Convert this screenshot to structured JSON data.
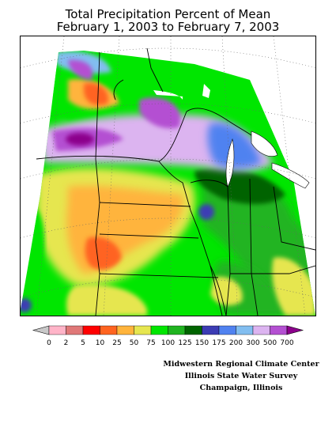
{
  "title": {
    "line1": "Total Precipitation Percent of Mean",
    "line2": "February 1, 2003 to February 7, 2003"
  },
  "legend": {
    "ticks": [
      "0",
      "2",
      "5",
      "10",
      "25",
      "50",
      "75",
      "100",
      "125",
      "150",
      "175",
      "200",
      "300",
      "500",
      "700"
    ],
    "colors": [
      "#c8c8c8",
      "#ffb4c8",
      "#e07878",
      "#ff0000",
      "#ff6420",
      "#ffb43c",
      "#e6e650",
      "#00e600",
      "#20b420",
      "#006400",
      "#3c3cb4",
      "#5082f0",
      "#82bef0",
      "#dcb4f0",
      "#b450d2",
      "#8c008c"
    ]
  },
  "credits": {
    "line1": "Midwestern Regional Climate Center",
    "line2": "Illinois State Water Survey",
    "line3": "Champaign, Illinois"
  }
}
